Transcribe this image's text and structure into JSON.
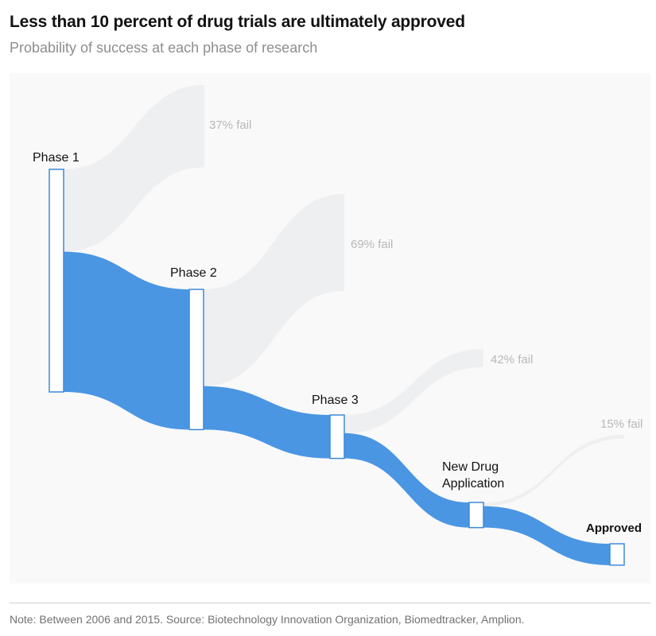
{
  "header": {
    "title": "Less than 10 percent of drug trials are ultimately approved",
    "subtitle": "Probability of success at each phase of research"
  },
  "footer": {
    "note": "Note: Between 2006 and 2015. Source: Biotechnology Innovation Organization, Biomedtracker, Amplion."
  },
  "colors": {
    "flow": "#4a96e3",
    "fail": "#eeeff0",
    "node_stroke": "#3d8ad8",
    "panel": "#f9f9f9"
  },
  "chart_data": {
    "type": "sankey",
    "title": "Less than 10 percent of drug trials are ultimately approved",
    "subtitle": "Probability of success at each phase of research",
    "unit": "share of trials entering Phase 1 (%)",
    "stages": [
      {
        "name": "Phase 1",
        "label_lines": [
          "Phase 1"
        ],
        "value": 100,
        "fail_label": "37% fail",
        "fail_pct": 37
      },
      {
        "name": "Phase 2",
        "label_lines": [
          "Phase 2"
        ],
        "value": 63,
        "fail_label": "69% fail",
        "fail_pct": 69
      },
      {
        "name": "Phase 3",
        "label_lines": [
          "Phase 3"
        ],
        "value": 19.5,
        "fail_label": "42% fail",
        "fail_pct": 42
      },
      {
        "name": "New Drug Application",
        "label_lines": [
          "New Drug",
          "Application"
        ],
        "value": 11.3,
        "fail_label": "15% fail",
        "fail_pct": 15
      },
      {
        "name": "Approved",
        "label_lines": [
          "Approved"
        ],
        "value": 9.6
      }
    ]
  }
}
